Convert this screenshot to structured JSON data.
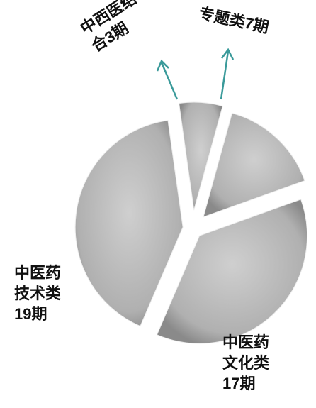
{
  "chart_data": {
    "type": "pie",
    "categories": [
      "中西医结合",
      "专题类",
      "中医药文化类",
      "中医药技术类"
    ],
    "values": [
      3,
      7,
      17,
      19
    ],
    "value_labels": [
      "3期",
      "7期",
      "17期",
      "19期"
    ],
    "color": "#b4b4b4"
  }
}
